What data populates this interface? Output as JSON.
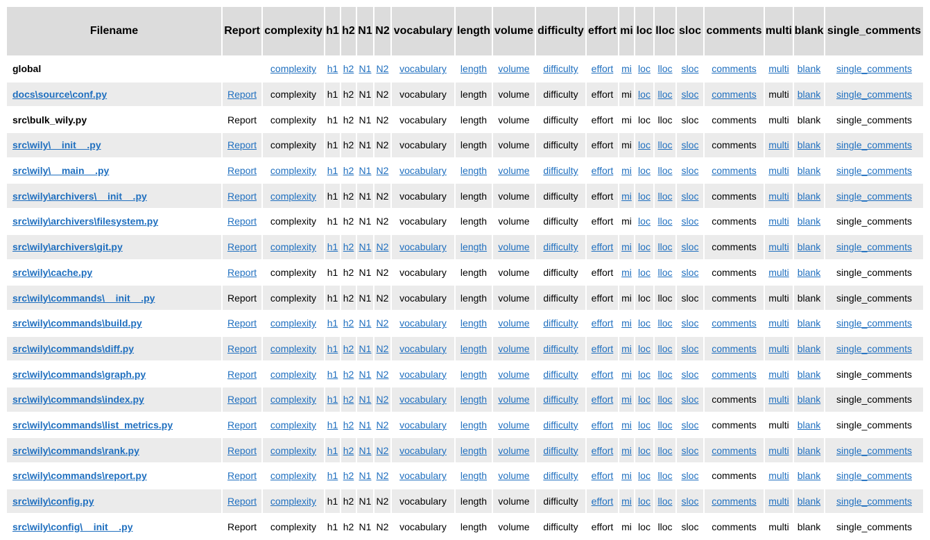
{
  "columns": [
    "Filename",
    "Report",
    "complexity",
    "h1",
    "h2",
    "N1",
    "N2",
    "vocabulary",
    "length",
    "volume",
    "difficulty",
    "effort",
    "mi",
    "loc",
    "lloc",
    "sloc",
    "comments",
    "multi",
    "blank",
    "single_comments"
  ],
  "rows": [
    {
      "filename": "global",
      "file_link": false,
      "links": [
        false,
        true,
        true,
        true,
        true,
        true,
        true,
        true,
        true,
        true,
        true,
        true,
        true,
        true,
        true,
        true,
        true,
        true,
        true
      ]
    },
    {
      "filename": "docs\\source\\conf.py",
      "file_link": true,
      "links": [
        true,
        false,
        false,
        false,
        false,
        false,
        false,
        false,
        false,
        false,
        false,
        false,
        true,
        true,
        true,
        true,
        false,
        true,
        true
      ]
    },
    {
      "filename": "src\\bulk_wily.py",
      "file_link": false,
      "links": [
        false,
        false,
        false,
        false,
        false,
        false,
        false,
        false,
        false,
        false,
        false,
        false,
        false,
        false,
        false,
        false,
        false,
        false,
        false
      ]
    },
    {
      "filename": "src\\wily\\__init__.py",
      "file_link": true,
      "links": [
        true,
        false,
        false,
        false,
        false,
        false,
        false,
        false,
        false,
        false,
        false,
        false,
        true,
        true,
        true,
        false,
        true,
        true,
        true
      ]
    },
    {
      "filename": "src\\wily\\__main__.py",
      "file_link": true,
      "links": [
        true,
        true,
        true,
        true,
        true,
        true,
        true,
        true,
        true,
        true,
        true,
        true,
        true,
        true,
        true,
        true,
        true,
        true,
        true
      ]
    },
    {
      "filename": "src\\wily\\archivers\\__init__.py",
      "file_link": true,
      "links": [
        true,
        true,
        false,
        false,
        false,
        false,
        false,
        false,
        false,
        false,
        false,
        true,
        true,
        true,
        true,
        false,
        true,
        true,
        true
      ]
    },
    {
      "filename": "src\\wily\\archivers\\filesystem.py",
      "file_link": true,
      "links": [
        true,
        false,
        false,
        false,
        false,
        false,
        false,
        false,
        false,
        false,
        false,
        false,
        true,
        true,
        true,
        false,
        true,
        true,
        false
      ]
    },
    {
      "filename": "src\\wily\\archivers\\git.py",
      "file_link": true,
      "links": [
        true,
        true,
        true,
        true,
        true,
        true,
        true,
        true,
        true,
        true,
        true,
        true,
        true,
        true,
        true,
        false,
        true,
        true,
        true
      ]
    },
    {
      "filename": "src\\wily\\cache.py",
      "file_link": true,
      "links": [
        true,
        false,
        false,
        false,
        false,
        false,
        false,
        false,
        false,
        false,
        false,
        true,
        true,
        true,
        true,
        false,
        true,
        true,
        false
      ]
    },
    {
      "filename": "src\\wily\\commands\\__init__.py",
      "file_link": true,
      "links": [
        false,
        false,
        false,
        false,
        false,
        false,
        false,
        false,
        false,
        false,
        false,
        false,
        false,
        false,
        false,
        false,
        false,
        false,
        false
      ]
    },
    {
      "filename": "src\\wily\\commands\\build.py",
      "file_link": true,
      "links": [
        true,
        true,
        true,
        true,
        true,
        true,
        true,
        true,
        true,
        true,
        true,
        true,
        true,
        true,
        true,
        true,
        true,
        true,
        true
      ]
    },
    {
      "filename": "src\\wily\\commands\\diff.py",
      "file_link": true,
      "links": [
        true,
        true,
        true,
        true,
        true,
        true,
        true,
        true,
        true,
        true,
        true,
        true,
        true,
        true,
        true,
        true,
        true,
        true,
        true
      ]
    },
    {
      "filename": "src\\wily\\commands\\graph.py",
      "file_link": true,
      "links": [
        true,
        true,
        true,
        true,
        true,
        true,
        true,
        true,
        true,
        true,
        true,
        true,
        true,
        true,
        true,
        true,
        true,
        true,
        false
      ]
    },
    {
      "filename": "src\\wily\\commands\\index.py",
      "file_link": true,
      "links": [
        true,
        true,
        true,
        true,
        true,
        true,
        true,
        true,
        true,
        true,
        true,
        true,
        true,
        true,
        true,
        false,
        true,
        true,
        false
      ]
    },
    {
      "filename": "src\\wily\\commands\\list_metrics.py",
      "file_link": true,
      "links": [
        true,
        true,
        true,
        true,
        true,
        true,
        true,
        true,
        true,
        true,
        true,
        true,
        true,
        true,
        true,
        false,
        false,
        true,
        false
      ]
    },
    {
      "filename": "src\\wily\\commands\\rank.py",
      "file_link": true,
      "links": [
        true,
        true,
        true,
        true,
        true,
        true,
        true,
        true,
        true,
        true,
        true,
        true,
        true,
        true,
        true,
        true,
        true,
        true,
        true
      ]
    },
    {
      "filename": "src\\wily\\commands\\report.py",
      "file_link": true,
      "links": [
        true,
        true,
        true,
        true,
        true,
        true,
        true,
        true,
        true,
        true,
        true,
        true,
        true,
        true,
        true,
        false,
        true,
        true,
        true
      ]
    },
    {
      "filename": "src\\wily\\config.py",
      "file_link": true,
      "links": [
        true,
        true,
        false,
        false,
        false,
        false,
        false,
        false,
        false,
        false,
        true,
        true,
        true,
        true,
        true,
        true,
        true,
        true,
        true
      ]
    },
    {
      "filename": "src\\wily\\config\\__init__.py",
      "file_link": true,
      "links": [
        false,
        false,
        false,
        false,
        false,
        false,
        false,
        false,
        false,
        false,
        false,
        false,
        false,
        false,
        false,
        false,
        false,
        false,
        false
      ]
    }
  ],
  "colors": {
    "link": "#1f6fbf",
    "header_bg": "#dcdcdc",
    "row_alt_bg": "#ebebeb"
  }
}
